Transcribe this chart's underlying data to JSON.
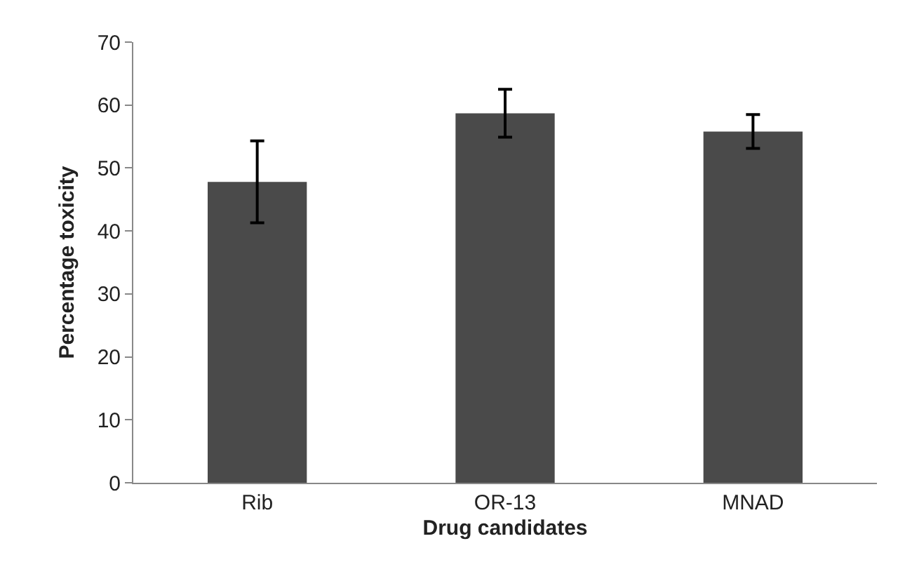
{
  "chart_data": {
    "type": "bar",
    "xlabel": "Drug candidates",
    "ylabel": "Percentage toxicity",
    "categories": [
      "Rib",
      "OR-13",
      "MNAD"
    ],
    "values": [
      47.8,
      58.7,
      55.8
    ],
    "errors": [
      6.5,
      3.8,
      2.7
    ],
    "color": "#4a4a4a",
    "ylim": [
      0,
      70
    ],
    "yticks": [
      0,
      10,
      20,
      30,
      40,
      50,
      60,
      70
    ]
  }
}
